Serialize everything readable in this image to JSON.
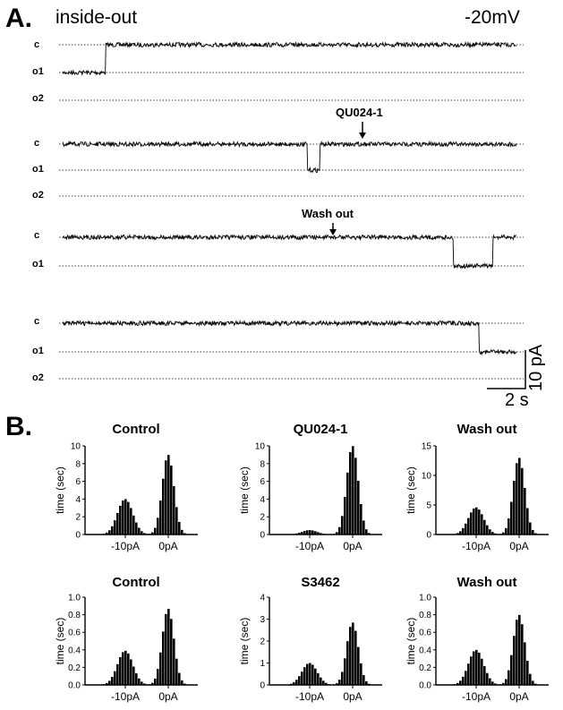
{
  "panel_a": {
    "letter": "A.",
    "condition": "inside-out",
    "voltage": "-20mV",
    "level_labels": [
      "c",
      "o1",
      "o2"
    ],
    "annotations": [
      "QU024-1",
      "Wash out"
    ],
    "scale_bar": {
      "y_label": "10 pA",
      "x_label": "2 s"
    }
  },
  "panel_b": {
    "letter": "B."
  },
  "chart_data": [
    {
      "type": "bar",
      "title": "Control",
      "ylabel": "time (sec)",
      "xticks": [
        "-10pA",
        "0pA"
      ],
      "yticks": [
        "0",
        "2",
        "4",
        "6",
        "8",
        "10"
      ],
      "ylim": [
        0,
        10
      ],
      "peaks": [
        {
          "x": "-10pA",
          "value": 4.0
        },
        {
          "x": "0pA",
          "value": 9.0
        }
      ]
    },
    {
      "type": "bar",
      "title": "QU024-1",
      "ylabel": "time (sec)",
      "xticks": [
        "-10pA",
        "0pA"
      ],
      "yticks": [
        "0",
        "2",
        "4",
        "6",
        "8",
        "10"
      ],
      "ylim": [
        0,
        10
      ],
      "peaks": [
        {
          "x": "-10pA",
          "value": 0.5
        },
        {
          "x": "0pA",
          "value": 10.0
        }
      ]
    },
    {
      "type": "bar",
      "title": "Wash out",
      "ylabel": "time (sec)",
      "xticks": [
        "-10pA",
        "0pA"
      ],
      "yticks": [
        "0",
        "5",
        "10",
        "15"
      ],
      "ylim": [
        0,
        15
      ],
      "peaks": [
        {
          "x": "-10pA",
          "value": 4.6
        },
        {
          "x": "0pA",
          "value": 13.0
        }
      ]
    },
    {
      "type": "bar",
      "title": "Control",
      "ylabel": "time (sec)",
      "xticks": [
        "-10pA",
        "0pA"
      ],
      "yticks": [
        "0.0",
        "0.2",
        "0.4",
        "0.6",
        "0.8",
        "1.0"
      ],
      "ylim": [
        0,
        1.0
      ],
      "peaks": [
        {
          "x": "-10pA",
          "value": 0.39
        },
        {
          "x": "0pA",
          "value": 0.87
        }
      ]
    },
    {
      "type": "bar",
      "title": "S3462",
      "ylabel": "time (sec)",
      "xticks": [
        "-10pA",
        "0pA"
      ],
      "yticks": [
        "0",
        "1",
        "2",
        "3",
        "4"
      ],
      "ylim": [
        0,
        4
      ],
      "peaks": [
        {
          "x": "-10pA",
          "value": 1.0
        },
        {
          "x": "0pA",
          "value": 2.85
        }
      ]
    },
    {
      "type": "bar",
      "title": "Wash out",
      "ylabel": "time (sec)",
      "xticks": [
        "-10pA",
        "0pA"
      ],
      "yticks": [
        "0.0",
        "0.2",
        "0.4",
        "0.6",
        "0.8",
        "1.0"
      ],
      "ylim": [
        0,
        1.0
      ],
      "peaks": [
        {
          "x": "-10pA",
          "value": 0.4
        },
        {
          "x": "0pA",
          "value": 0.8
        }
      ]
    }
  ]
}
